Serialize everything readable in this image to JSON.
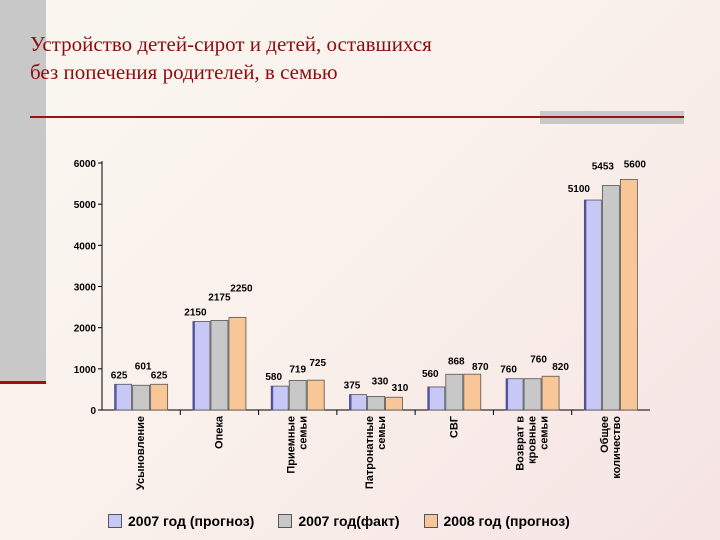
{
  "title_lines": [
    "Устройство детей-сирот и детей, оставшихся",
    "без попечения родителей, в семью"
  ],
  "chart_data": {
    "type": "bar",
    "ylim": [
      0,
      6000
    ],
    "yticks": [
      "0",
      "1000",
      "2000",
      "3000",
      "4000",
      "5000",
      "6000"
    ],
    "categories": [
      [
        "Усыновление"
      ],
      [
        "Опека"
      ],
      [
        "Приемные",
        "семьи"
      ],
      [
        "Патронатные",
        "семьи"
      ],
      [
        "СВГ"
      ],
      [
        "Возврат в",
        "кровные",
        "семьи"
      ],
      [
        "Общее",
        "количество"
      ]
    ],
    "series": [
      {
        "name": "2007 год (прогноз)",
        "color": "#c7c8f5",
        "values": [
          625,
          2150,
          580,
          375,
          560,
          760,
          5100
        ]
      },
      {
        "name": "2007 год(факт)",
        "color": "#c8c8c8",
        "values": [
          601,
          2175,
          719,
          330,
          868,
          760,
          5453
        ]
      },
      {
        "name": "2008 год (прогноз)",
        "color": "#f9c698",
        "values": [
          625,
          2250,
          725,
          310,
          870,
          820,
          5600
        ]
      }
    ]
  }
}
